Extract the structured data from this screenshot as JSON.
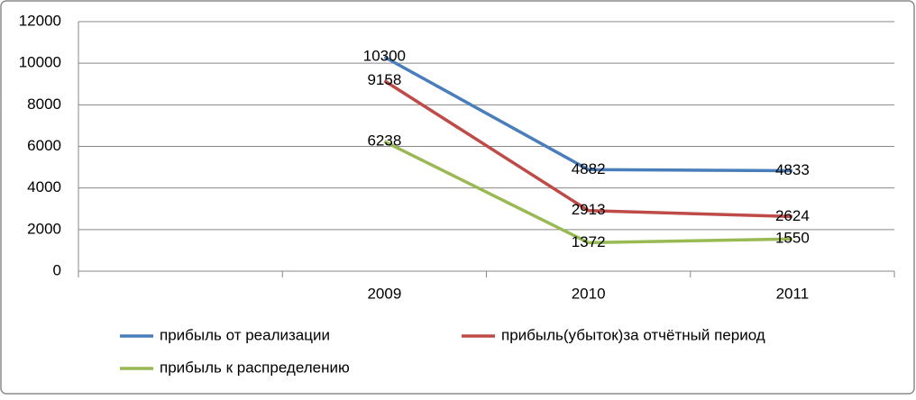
{
  "chart_data": {
    "type": "line",
    "categories": [
      null,
      "2009",
      "2010",
      "2011"
    ],
    "series": [
      {
        "name": "прибыль от реализации",
        "color": "#4a7ebb",
        "values": [
          null,
          10300,
          4882,
          4833
        ]
      },
      {
        "name": "прибыль(убыток)за отчётный период",
        "color": "#be4b48",
        "values": [
          null,
          9158,
          2913,
          2624
        ]
      },
      {
        "name": "прибыль к распределению",
        "color": "#98b954",
        "values": [
          null,
          6238,
          1372,
          1550
        ]
      }
    ],
    "ylim": [
      0,
      12000
    ],
    "yticks": [
      0,
      2000,
      4000,
      6000,
      8000,
      10000,
      12000
    ],
    "grid": true,
    "legend": "bottom"
  }
}
